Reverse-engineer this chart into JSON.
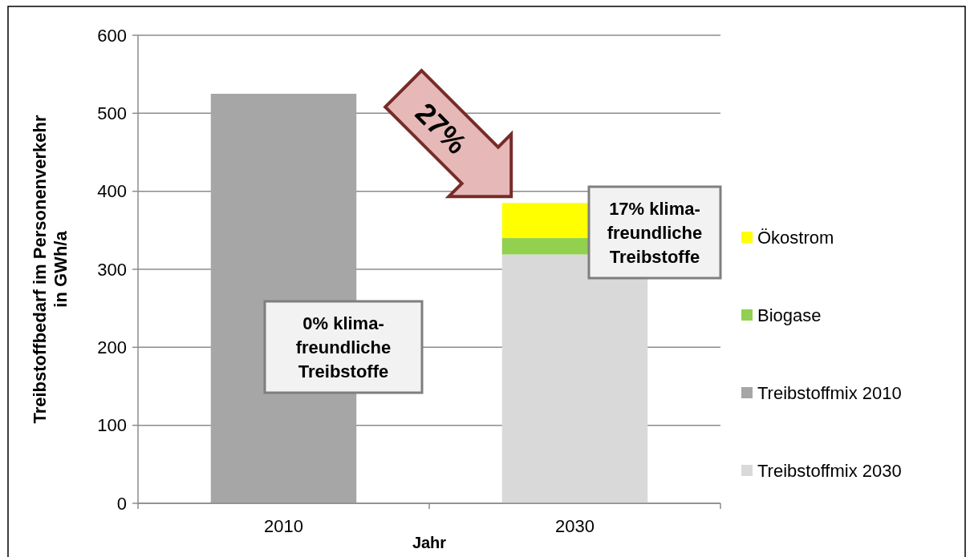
{
  "chart_data": {
    "type": "bar",
    "stacked": true,
    "xlabel": "Jahr",
    "ylabel": "Treibstoffbedarf im Personenverkehr\nin GWh/a",
    "categories": [
      "2010",
      "2030"
    ],
    "series": [
      {
        "name": "Treibstoffmix 2030",
        "color": "#d9d9d9",
        "values": [
          null,
          319
        ]
      },
      {
        "name": "Treibstoffmix 2010",
        "color": "#a6a6a6",
        "values": [
          525,
          null
        ]
      },
      {
        "name": "Biogase",
        "color": "#92d050",
        "values": [
          null,
          21
        ]
      },
      {
        "name": "Ökostrom",
        "color": "#ffff00",
        "values": [
          null,
          45
        ]
      }
    ],
    "ylim": [
      0,
      600
    ],
    "yticks": [
      0,
      100,
      200,
      300,
      400,
      500,
      600
    ],
    "grid": "y",
    "legend": "right",
    "annotations": [
      "27%",
      "0%  klima-\nfreundliche\nTreibstoffe",
      "17%  klima-\nfreundliche\nTreibstoffe"
    ]
  }
}
